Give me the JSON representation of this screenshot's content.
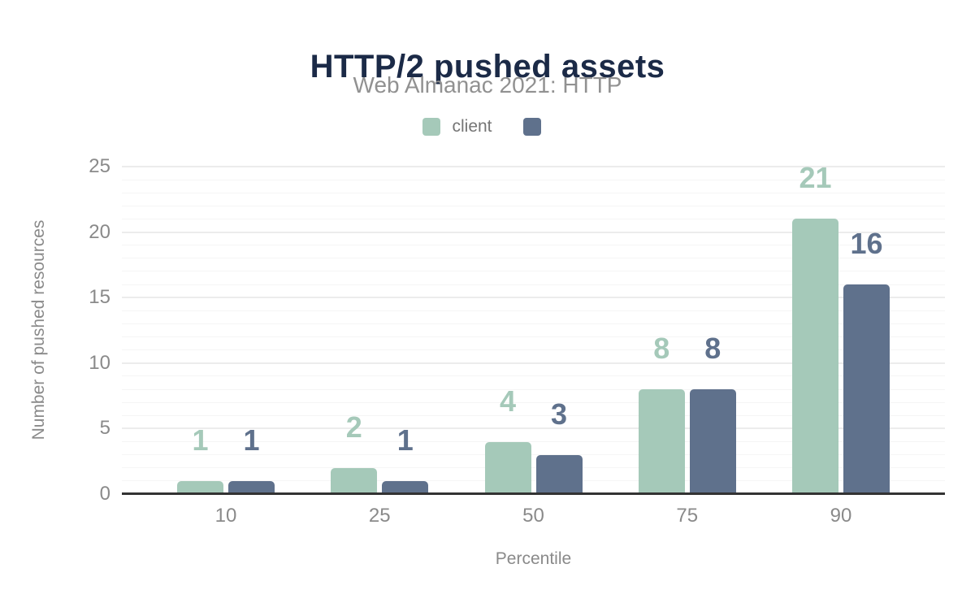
{
  "chart_data": {
    "type": "bar",
    "title": "HTTP/2 pushed assets",
    "subtitle": "Web Almanac 2021: HTTP",
    "xlabel": "Percentile",
    "ylabel": "Number of pushed resources",
    "categories": [
      "10",
      "25",
      "50",
      "75",
      "90"
    ],
    "series": [
      {
        "name": "client",
        "color": "#a5c9b9",
        "values": [
          1,
          2,
          4,
          8,
          21
        ]
      },
      {
        "name": "",
        "color": "#5f718c",
        "values": [
          1,
          1,
          3,
          8,
          16
        ]
      }
    ],
    "ylim": [
      0,
      25
    ],
    "yticks": [
      0,
      5,
      10,
      15,
      20,
      25
    ],
    "grid": {
      "horizontal": true,
      "minor_step": 1,
      "major_step": 5
    },
    "legend_position": "top",
    "data_labels_shown": true
  },
  "colors": {
    "title_text": "#1b2a47",
    "subtitle_text": "#919191",
    "axis_text": "#8a8a8a",
    "legend_text": "#757575",
    "grid_minor": "#f5f5f5",
    "grid_major": "#ececec",
    "baseline": "#333333"
  }
}
